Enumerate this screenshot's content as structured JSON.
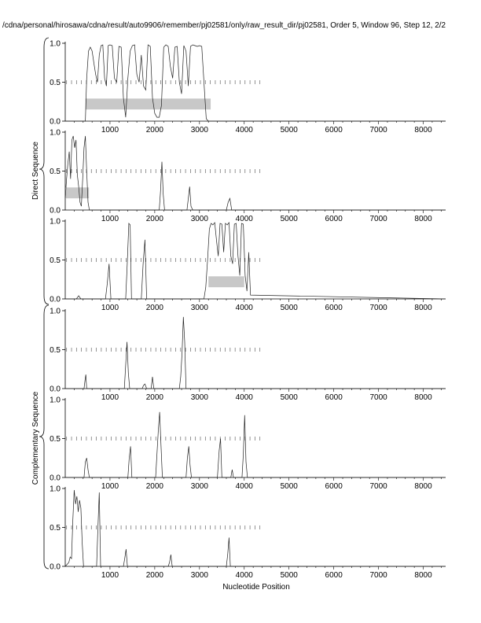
{
  "figure": {
    "title": "/cdna/personal/hirosawa/cdna/result/auto9906/remember/pj02581/only/raw_result_dir/pj02581, Order 5, Window 96, Step 12, 2/2",
    "xlabel": "Nucleotide Position",
    "group_labels": [
      "Direct Sequence",
      "Complementary Sequence"
    ]
  },
  "chart_data": [
    {
      "type": "line",
      "panel": 1,
      "group": "Direct Sequence",
      "xlim": [
        0,
        8500
      ],
      "ylim": [
        0,
        1
      ],
      "xticks": [
        1000,
        2000,
        3000,
        4000,
        5000,
        6000,
        7000,
        8000
      ],
      "yticks": [
        0.0,
        0.5,
        1.0
      ],
      "ytick_labels": [
        "0.0",
        "0.5",
        "1.0"
      ],
      "x": [
        0,
        450,
        480,
        520,
        560,
        600,
        640,
        680,
        720,
        760,
        800,
        840,
        880,
        920,
        960,
        1000,
        1050,
        1100,
        1150,
        1200,
        1250,
        1300,
        1350,
        1400,
        1450,
        1500,
        1550,
        1600,
        1650,
        1700,
        1750,
        1800,
        1850,
        1900,
        1950,
        2000,
        2050,
        2100,
        2150,
        2200,
        2250,
        2300,
        2350,
        2400,
        2450,
        2500,
        2550,
        2600,
        2650,
        2700,
        2750,
        2800,
        2850,
        2900,
        2950,
        3000,
        3050,
        3100,
        3150,
        3200,
        3250,
        8500
      ],
      "values": [
        0,
        0,
        0.55,
        0.9,
        0.95,
        0.9,
        0.75,
        0.6,
        0.5,
        0.85,
        0.97,
        0.98,
        0.55,
        0.45,
        0.97,
        0.98,
        0.97,
        0.55,
        0.5,
        0.96,
        0.95,
        0.3,
        0.05,
        0.55,
        0.9,
        0.97,
        0.98,
        0.6,
        0.5,
        0.85,
        0.45,
        0.4,
        0.98,
        0.96,
        0.3,
        0.1,
        0.05,
        0.05,
        0.2,
        0.95,
        0.98,
        0.96,
        0.7,
        0.55,
        0.95,
        0.96,
        0.5,
        0.35,
        0.97,
        0.9,
        0.45,
        0.96,
        0.98,
        0.97,
        0.96,
        0.97,
        0.96,
        0.5,
        0.03,
        0,
        0,
        0
      ],
      "tick_marks": {
        "y": 0.5,
        "x_start": 30,
        "x_end": 4350,
        "count": 40
      },
      "bars": [
        {
          "x_start": 450,
          "x_end": 3250,
          "y_low": 0.15,
          "y_high": 0.29
        }
      ]
    },
    {
      "type": "line",
      "panel": 2,
      "group": "Direct Sequence",
      "xlim": [
        0,
        8500
      ],
      "ylim": [
        0,
        1
      ],
      "xticks": [
        1000,
        2000,
        3000,
        4000,
        5000,
        6000,
        7000,
        8000
      ],
      "yticks": [
        0.0,
        0.5,
        1.0
      ],
      "ytick_labels": [
        "0.0",
        "0.5",
        "1.0"
      ],
      "x": [
        0,
        30,
        60,
        90,
        120,
        150,
        180,
        210,
        240,
        270,
        300,
        330,
        360,
        390,
        420,
        450,
        480,
        510,
        540,
        2100,
        2130,
        2160,
        2190,
        2220,
        2720,
        2750,
        2780,
        2810,
        2850,
        3600,
        3640,
        3680,
        3720,
        8500
      ],
      "values": [
        0.15,
        0.4,
        0.6,
        0.75,
        0.4,
        0.9,
        0.95,
        0.8,
        0.9,
        0.45,
        0.3,
        0.1,
        0.05,
        0.4,
        0.8,
        0.95,
        0.5,
        0.1,
        0,
        0,
        0.25,
        0.62,
        0.2,
        0,
        0,
        0.15,
        0.3,
        0.05,
        0,
        0,
        0.1,
        0.15,
        0,
        0
      ],
      "tick_marks": {
        "y": 0.5,
        "x_start": 30,
        "x_end": 4350,
        "count": 40
      },
      "bars": [
        {
          "x_start": 0,
          "x_end": 530,
          "y_low": 0.15,
          "y_high": 0.29
        }
      ]
    },
    {
      "type": "line",
      "panel": 3,
      "group": "Direct Sequence",
      "xlim": [
        0,
        8500
      ],
      "ylim": [
        0,
        1
      ],
      "xticks": [
        1000,
        2000,
        3000,
        4000,
        5000,
        6000,
        7000,
        8000
      ],
      "yticks": [
        0.0,
        0.5,
        1.0
      ],
      "ytick_labels": [
        "0.0",
        "0.5",
        "1.0"
      ],
      "x": [
        0,
        250,
        300,
        350,
        900,
        940,
        980,
        1020,
        1350,
        1390,
        1420,
        1450,
        1480,
        1700,
        1740,
        1780,
        1820,
        3100,
        3140,
        3180,
        3220,
        3260,
        3300,
        3340,
        3380,
        3420,
        3460,
        3500,
        3540,
        3580,
        3620,
        3660,
        3700,
        3740,
        3780,
        3820,
        3860,
        3900,
        3940,
        3980,
        4020,
        4060,
        4100,
        4140,
        8500
      ],
      "values": [
        0,
        0,
        0.04,
        0,
        0,
        0.2,
        0.45,
        0,
        0,
        0.5,
        0.97,
        0.95,
        0,
        0,
        0.45,
        0.76,
        0,
        0,
        0.15,
        0.5,
        0.9,
        0.97,
        0.95,
        0.98,
        0.75,
        0.55,
        0.97,
        0.96,
        0.6,
        0.97,
        0.95,
        0.98,
        0.55,
        0.45,
        0.96,
        0.97,
        0.55,
        0.3,
        0.97,
        0.96,
        0.3,
        0.1,
        0.6,
        0.05,
        0
      ],
      "tick_marks": {
        "y": 0.5,
        "x_start": 30,
        "x_end": 4350,
        "count": 40
      },
      "bars": [
        {
          "x_start": 3200,
          "x_end": 4000,
          "y_low": 0.15,
          "y_high": 0.29
        }
      ]
    },
    {
      "type": "line",
      "panel": 4,
      "group": "Complementary Sequence",
      "xlim": [
        0,
        8500
      ],
      "ylim": [
        0,
        1
      ],
      "xticks": [
        1000,
        2000,
        3000,
        4000,
        5000,
        6000,
        7000,
        8000
      ],
      "yticks": [
        0.0,
        0.5,
        1.0
      ],
      "ytick_labels": [
        "0.0",
        "0.5",
        "1.0"
      ],
      "x": [
        0,
        420,
        440,
        460,
        480,
        1320,
        1350,
        1380,
        1410,
        1440,
        1720,
        1750,
        1780,
        1820,
        1920,
        1950,
        1980,
        2550,
        2580,
        2610,
        2640,
        2670,
        2700,
        8500
      ],
      "values": [
        0,
        0,
        0.1,
        0.18,
        0,
        0,
        0.3,
        0.6,
        0.2,
        0,
        0,
        0.04,
        0.06,
        0,
        0,
        0.15,
        0,
        0,
        0.15,
        0.45,
        0.92,
        0.6,
        0,
        0
      ],
      "tick_marks": {
        "y": 0.5,
        "x_start": 30,
        "x_end": 4350,
        "count": 40
      },
      "bars": []
    },
    {
      "type": "line",
      "panel": 5,
      "group": "Complementary Sequence",
      "xlim": [
        0,
        8500
      ],
      "ylim": [
        0,
        1
      ],
      "xticks": [
        1000,
        2000,
        3000,
        4000,
        5000,
        6000,
        7000,
        8000
      ],
      "yticks": [
        0.0,
        0.5,
        1.0
      ],
      "ytick_labels": [
        "0.0",
        "0.5",
        "1.0"
      ],
      "x": [
        0,
        420,
        450,
        480,
        510,
        540,
        1400,
        1430,
        1460,
        1490,
        2020,
        2050,
        2080,
        2110,
        2140,
        2170,
        2700,
        2730,
        2760,
        2790,
        2820,
        3400,
        3440,
        3470,
        3500,
        3700,
        3730,
        3760,
        3950,
        3980,
        4010,
        4040,
        4070,
        8500
      ],
      "values": [
        0,
        0,
        0.2,
        0.25,
        0.1,
        0,
        0,
        0.25,
        0.4,
        0,
        0,
        0.3,
        0.6,
        0.84,
        0.4,
        0,
        0,
        0.25,
        0.4,
        0.15,
        0,
        0,
        0.35,
        0.5,
        0,
        0,
        0.1,
        0,
        0,
        0.3,
        0.8,
        0.2,
        0,
        0
      ],
      "tick_marks": {
        "y": 0.5,
        "x_start": 30,
        "x_end": 4350,
        "count": 40
      },
      "bars": []
    },
    {
      "type": "line",
      "panel": 6,
      "group": "Complementary Sequence",
      "xlim": [
        0,
        8500
      ],
      "ylim": [
        0,
        1
      ],
      "xticks": [
        1000,
        2000,
        3000,
        4000,
        5000,
        6000,
        7000,
        8000
      ],
      "yticks": [
        0.0,
        0.5,
        1.0
      ],
      "ytick_labels": [
        "0.0",
        "0.5",
        "1.0"
      ],
      "x": [
        0,
        80,
        110,
        140,
        170,
        200,
        230,
        260,
        290,
        320,
        350,
        380,
        410,
        700,
        730,
        760,
        790,
        1300,
        1330,
        1360,
        1390,
        2300,
        2330,
        2360,
        2390,
        3600,
        3630,
        3660,
        3690,
        8500
      ],
      "values": [
        0,
        0.05,
        0.12,
        0.1,
        0.6,
        0.98,
        0.8,
        0.9,
        0.7,
        0.85,
        0.75,
        0.3,
        0,
        0,
        0.5,
        0.95,
        0,
        0,
        0.1,
        0.22,
        0,
        0,
        0.05,
        0.15,
        0,
        0,
        0.15,
        0.37,
        0,
        0
      ],
      "tick_marks": {
        "y": 0.5,
        "x_start": 30,
        "x_end": 4350,
        "count": 40
      },
      "bars": []
    }
  ]
}
